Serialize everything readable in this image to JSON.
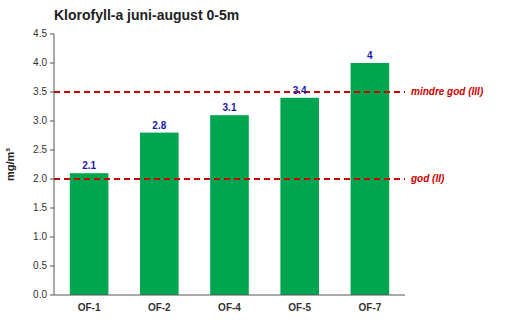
{
  "chart_data": {
    "type": "bar",
    "title": "Klorofyll-a juni-august 0-5m",
    "categories": [
      "OF-1",
      "OF-2",
      "OF-4",
      "OF-5",
      "OF-7"
    ],
    "values": [
      2.1,
      2.8,
      3.1,
      3.4,
      4.0
    ],
    "color": "#00a550",
    "y_label": "mg/m³",
    "ylim": [
      0.0,
      4.5
    ],
    "yticks": [
      {
        "value": 0.0,
        "label": "0.0"
      },
      0.5,
      {
        "value": 1.0,
        "label": "1.0"
      },
      1.5,
      {
        "value": 2.0,
        "label": "2.0"
      },
      2.5,
      {
        "value": 3.0,
        "label": "3.0"
      },
      3.5,
      {
        "value": 4.0,
        "label": "4.0"
      },
      4.5
    ],
    "data_labels": true,
    "grid": false,
    "annotations": [
      {
        "type": "hline",
        "y": 2.0,
        "label": "god (II)",
        "color": "#cc0000"
      },
      {
        "type": "hline",
        "y": 3.5,
        "label": "mindre god (III)",
        "color": "#cc0000"
      }
    ]
  }
}
